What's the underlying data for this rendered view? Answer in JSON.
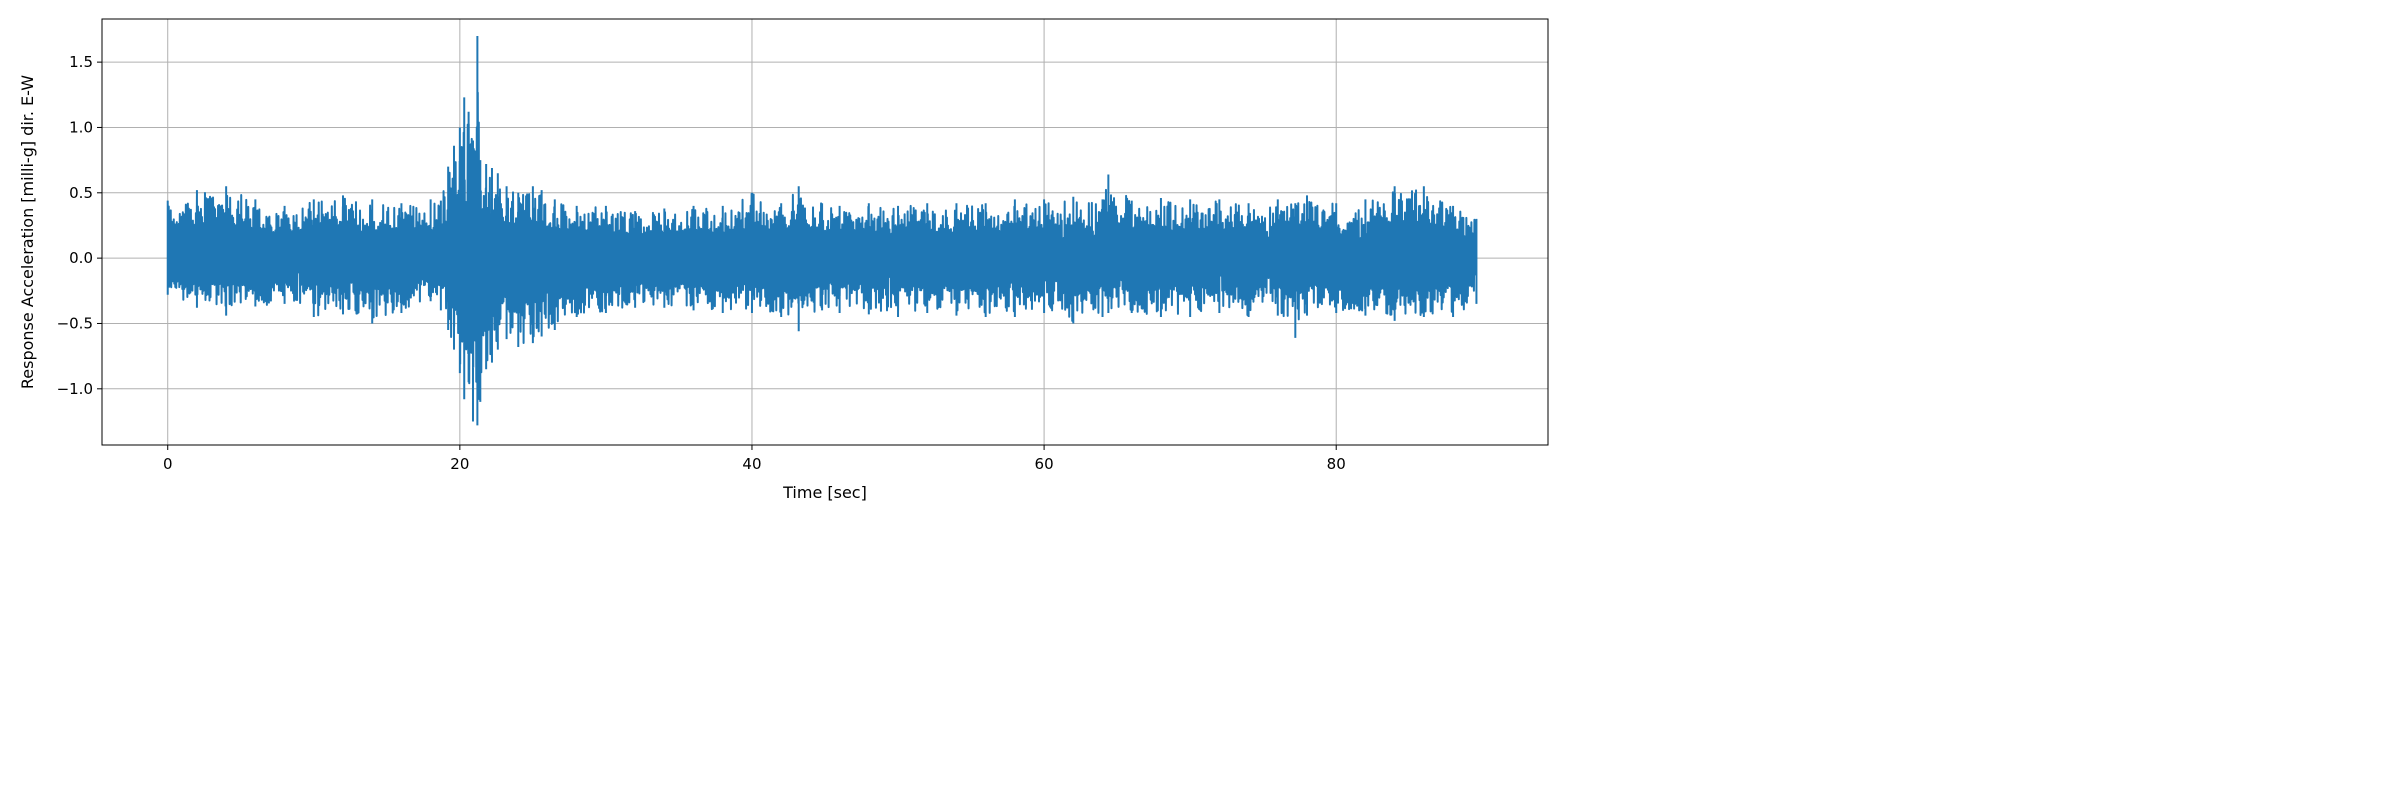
{
  "chart_data": {
    "type": "line",
    "title": "",
    "xlabel": "Time [sec]",
    "ylabel": "Response Acceleration [milli-g] dir. E-W",
    "xlim": [
      -4.5,
      94.5
    ],
    "ylim": [
      -1.43,
      1.83
    ],
    "grid": true,
    "legend": "none",
    "color": "#1f77b4",
    "x_ticks": [
      0,
      20,
      40,
      60,
      80
    ],
    "x_tick_labels": [
      "0",
      "20",
      "40",
      "60",
      "80"
    ],
    "y_ticks": [
      -1.0,
      -0.5,
      0.0,
      0.5,
      1.0,
      1.5
    ],
    "y_tick_labels": [
      "−1.0",
      "−0.5",
      "0.0",
      "0.5",
      "1.0",
      "1.5"
    ],
    "series": [
      {
        "values_note_free": true,
        "x": [
          0,
          2,
          4,
          6,
          8,
          10,
          12,
          14,
          16,
          18,
          18.7,
          19.2,
          19.6,
          20.0,
          20.3,
          20.6,
          20.9,
          21.2,
          21.4,
          21.8,
          22.2,
          22.6,
          23.2,
          24.0,
          25.0,
          25.6,
          26.5,
          28,
          30,
          32,
          34,
          36,
          38,
          40,
          42,
          43.2,
          44.8,
          46,
          48,
          50,
          52,
          54,
          56,
          58,
          60,
          62,
          64,
          64.4,
          66,
          68,
          70,
          72,
          74,
          76,
          77.2,
          78,
          80,
          82,
          84,
          86,
          88,
          89.6
        ],
        "upper": [
          0.44,
          0.52,
          0.55,
          0.45,
          0.4,
          0.45,
          0.48,
          0.45,
          0.42,
          0.45,
          0.44,
          0.7,
          0.86,
          1.0,
          1.23,
          1.12,
          0.9,
          1.7,
          0.75,
          0.72,
          0.69,
          0.65,
          0.55,
          0.5,
          0.55,
          0.52,
          0.45,
          0.4,
          0.4,
          0.36,
          0.38,
          0.4,
          0.4,
          0.5,
          0.42,
          0.55,
          0.42,
          0.4,
          0.42,
          0.4,
          0.42,
          0.42,
          0.42,
          0.45,
          0.45,
          0.47,
          0.45,
          0.64,
          0.44,
          0.46,
          0.45,
          0.45,
          0.42,
          0.45,
          0.42,
          0.48,
          0.42,
          0.45,
          0.55,
          0.55,
          0.4,
          0.3
        ],
        "lower": [
          -0.28,
          -0.38,
          -0.44,
          -0.37,
          -0.35,
          -0.45,
          -0.43,
          -0.5,
          -0.42,
          -0.33,
          -0.4,
          -0.55,
          -0.7,
          -0.88,
          -1.08,
          -0.95,
          -1.25,
          -1.28,
          -1.1,
          -0.85,
          -0.8,
          -0.7,
          -0.62,
          -0.68,
          -0.65,
          -0.6,
          -0.55,
          -0.45,
          -0.42,
          -0.38,
          -0.38,
          -0.4,
          -0.42,
          -0.42,
          -0.45,
          -0.56,
          -0.4,
          -0.42,
          -0.43,
          -0.45,
          -0.42,
          -0.44,
          -0.45,
          -0.45,
          -0.42,
          -0.5,
          -0.45,
          -0.42,
          -0.42,
          -0.45,
          -0.45,
          -0.42,
          -0.45,
          -0.44,
          -0.61,
          -0.44,
          -0.42,
          -0.44,
          -0.48,
          -0.45,
          -0.45,
          -0.35
        ]
      }
    ]
  }
}
